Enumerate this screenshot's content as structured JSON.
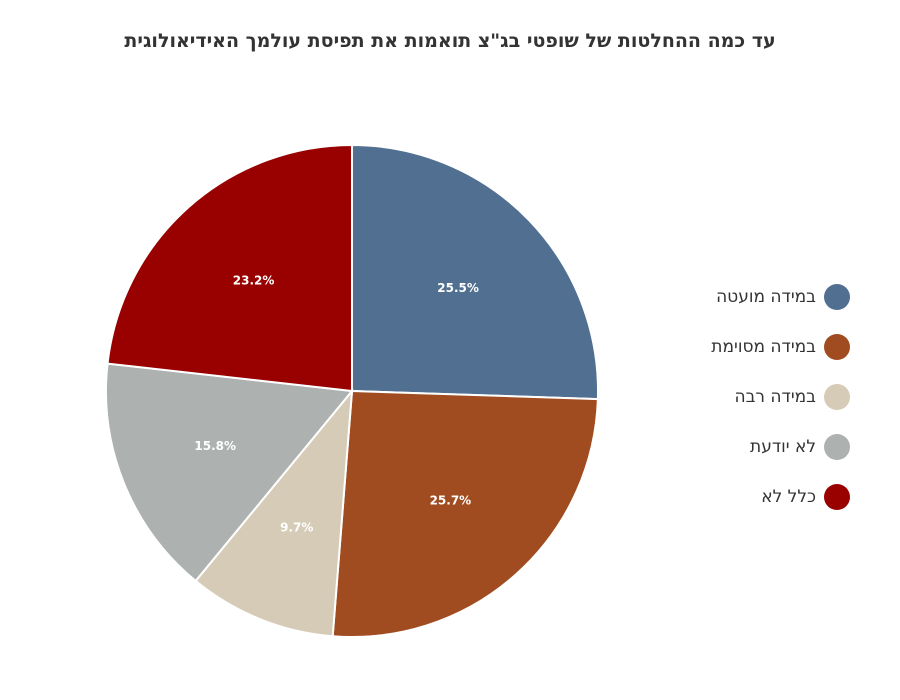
{
  "chart_data": {
    "type": "pie",
    "title": "עד כמה ההחלטות של שופטי בג\"צ תואמות את תפיסת עולמך האידיאולוגית",
    "legend_position": "right",
    "slices": [
      {
        "label": "במידה מועטה",
        "value": 25.5,
        "value_label": "25.5%",
        "color": "#506f91"
      },
      {
        "label": "במידה מסוימת",
        "value": 25.7,
        "value_label": "25.7%",
        "color": "#a04c20"
      },
      {
        "label": "במידה רבה",
        "value": 9.7,
        "value_label": "9.7%",
        "color": "#d6cbb6"
      },
      {
        "label": "לא יודעת",
        "value": 15.8,
        "value_label": "15.8%",
        "color": "#adb2b1"
      },
      {
        "label": "כלל לא",
        "value": 23.2,
        "value_label": "23.2%",
        "color": "#990000"
      }
    ]
  }
}
